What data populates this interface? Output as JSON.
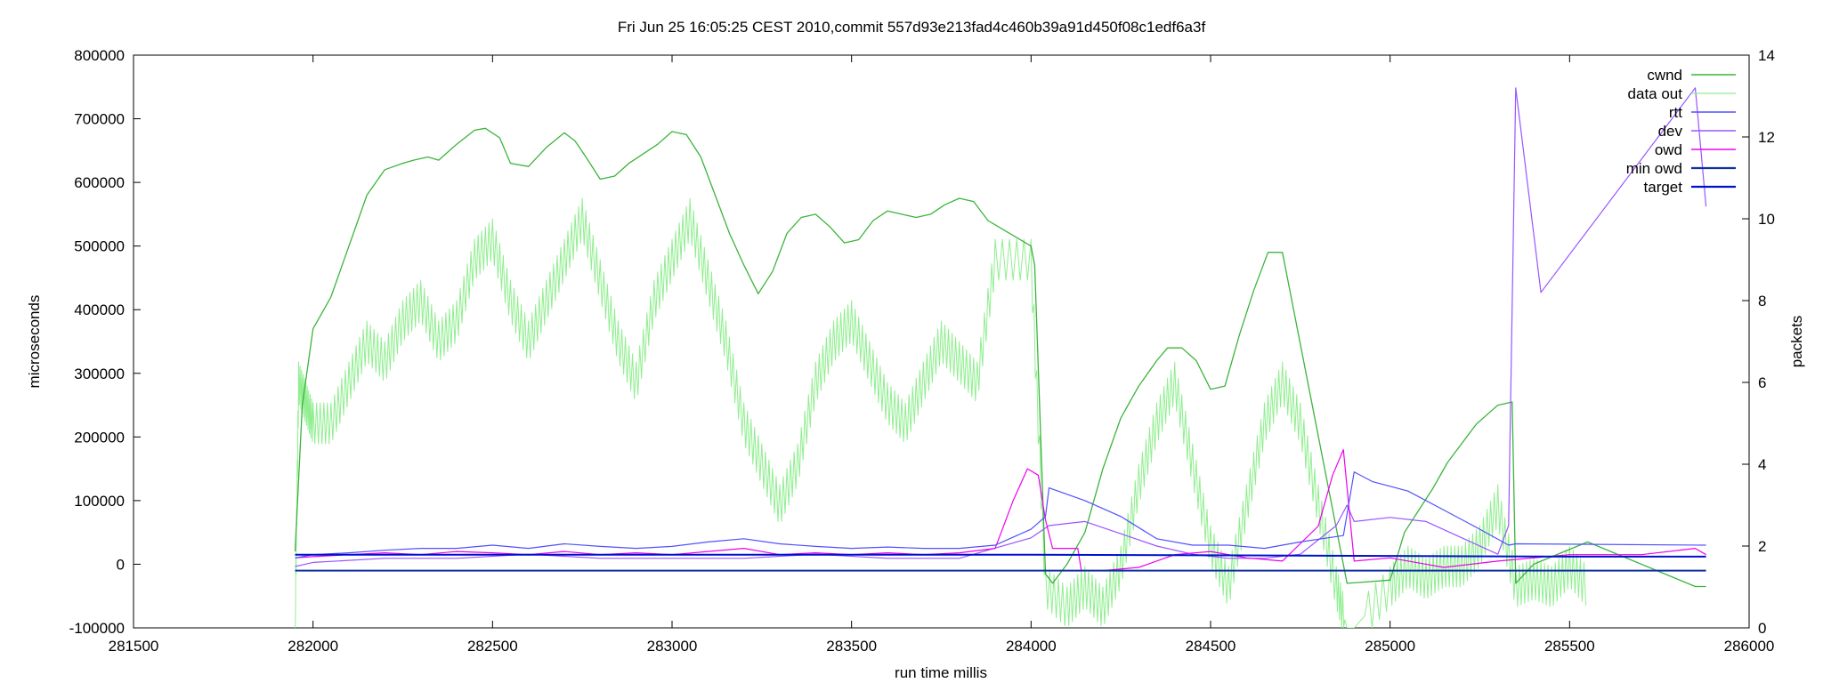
{
  "chart_data": {
    "type": "line",
    "title": "Fri Jun 25 16:05:25 CEST 2010,commit 557d93e213fad4c460b39a91d450f08c1edf6a3f",
    "xlabel": "run time millis",
    "ylabel": "microseconds",
    "y2label": "packets",
    "xlim": [
      281500,
      286000
    ],
    "ylim": [
      -100000,
      800000
    ],
    "y2lim": [
      0,
      14
    ],
    "x_ticks": [
      "281500",
      "282000",
      "282500",
      "283000",
      "283500",
      "284000",
      "284500",
      "285000",
      "285500",
      "286000"
    ],
    "y_ticks": [
      "-100000",
      "0",
      "100000",
      "200000",
      "300000",
      "400000",
      "500000",
      "600000",
      "700000",
      "800000"
    ],
    "y2_ticks": [
      "0",
      "2",
      "4",
      "6",
      "8",
      "10",
      "12",
      "14"
    ],
    "grid": false,
    "legend_position": "top-right",
    "series": [
      {
        "name": "cwnd",
        "axis": "y1",
        "color": "#3cb43c",
        "width": 1.3,
        "x": [
          281950,
          281970,
          282000,
          282050,
          282100,
          282150,
          282200,
          282250,
          282280,
          282320,
          282350,
          282400,
          282450,
          282480,
          282520,
          282550,
          282600,
          282650,
          282700,
          282730,
          282760,
          282800,
          282840,
          282880,
          282920,
          282960,
          283000,
          283040,
          283080,
          283120,
          283160,
          283200,
          283240,
          283280,
          283320,
          283360,
          283400,
          283440,
          283480,
          283520,
          283560,
          283600,
          283640,
          283680,
          283720,
          283760,
          283800,
          283840,
          283880,
          284000,
          284010,
          284040,
          284060,
          284100,
          284150,
          284200,
          284250,
          284300,
          284350,
          284380,
          284420,
          284460,
          284500,
          284540,
          284580,
          284620,
          284660,
          284700,
          284880,
          285000,
          285040,
          285080,
          285120,
          285160,
          285200,
          285240,
          285280,
          285300,
          285340,
          285350,
          285400,
          285550,
          285850,
          285880
        ],
        "y": [
          20000,
          250000,
          370000,
          420000,
          500000,
          580000,
          620000,
          630000,
          635000,
          640000,
          635000,
          660000,
          682000,
          685000,
          670000,
          630000,
          625000,
          655000,
          678000,
          665000,
          640000,
          605000,
          610000,
          630000,
          645000,
          660000,
          680000,
          675000,
          640000,
          580000,
          520000,
          470000,
          425000,
          460000,
          520000,
          545000,
          550000,
          530000,
          505000,
          510000,
          540000,
          555000,
          550000,
          545000,
          550000,
          565000,
          575000,
          570000,
          540000,
          500000,
          470000,
          -15000,
          -30000,
          0,
          50000,
          150000,
          230000,
          280000,
          320000,
          340000,
          340000,
          320000,
          275000,
          280000,
          360000,
          430000,
          490000,
          490000,
          -30000,
          -25000,
          50000,
          85000,
          120000,
          160000,
          190000,
          220000,
          240000,
          250000,
          255000,
          -30000,
          0,
          35000,
          -35000,
          -35000
        ]
      },
      {
        "name": "data out",
        "axis": "y2",
        "color": "#90ee90",
        "width": 1,
        "x": [
          281950,
          281960,
          281980,
          282000,
          282050,
          282100,
          282150,
          282200,
          282250,
          282300,
          282350,
          282400,
          282450,
          282500,
          282550,
          282600,
          282650,
          282700,
          282750,
          282800,
          282850,
          282900,
          282950,
          283000,
          283050,
          283100,
          283150,
          283200,
          283250,
          283300,
          283350,
          283400,
          283450,
          283500,
          283550,
          283600,
          283650,
          283700,
          283750,
          283800,
          283850,
          283900,
          284000,
          284040,
          284100,
          284150,
          284200,
          284250,
          284300,
          284350,
          284400,
          284450,
          284500,
          284550,
          284600,
          284650,
          284700,
          284750,
          284800,
          284850,
          284880,
          284900,
          285000,
          285050,
          285100,
          285150,
          285200,
          285250,
          285300,
          285350,
          285400,
          285450,
          285500,
          285550
        ],
        "y": [
          0,
          6,
          5.5,
          5,
          5,
          6,
          7,
          6.5,
          7.5,
          8,
          7,
          7.5,
          9,
          9.5,
          8,
          7,
          8,
          9,
          10,
          8.5,
          7,
          6,
          8,
          9,
          10,
          8.5,
          7,
          5,
          4,
          3,
          4,
          6,
          7,
          7.5,
          6.5,
          5.5,
          5,
          6,
          7,
          6.5,
          6,
          9,
          9,
          1,
          0.5,
          1,
          0.5,
          1.5,
          3.5,
          5,
          6,
          4,
          2,
          1,
          3,
          5,
          6,
          5,
          3,
          1,
          0,
          0,
          1,
          1.5,
          1.2,
          1.5,
          1.5,
          2,
          3,
          1,
          1.2,
          1,
          1.5,
          1
        ]
      },
      {
        "name": "rtt",
        "axis": "y1",
        "color": "#5050ff",
        "width": 1.2,
        "x": [
          281950,
          282000,
          282100,
          282200,
          282300,
          282400,
          282500,
          282600,
          282700,
          282800,
          282900,
          283000,
          283100,
          283200,
          283300,
          283400,
          283500,
          283600,
          283700,
          283800,
          283900,
          284000,
          284040,
          284050,
          284150,
          284250,
          284350,
          284450,
          284550,
          284650,
          284750,
          284870,
          284900,
          284950,
          285050,
          285150,
          285250,
          285330,
          285350,
          285880
        ],
        "y": [
          10000,
          15000,
          18000,
          22000,
          25000,
          25000,
          30000,
          25000,
          32000,
          28000,
          25000,
          28000,
          35000,
          40000,
          32000,
          28000,
          25000,
          27000,
          25000,
          25000,
          30000,
          55000,
          75000,
          120000,
          100000,
          75000,
          40000,
          30000,
          30000,
          25000,
          35000,
          45000,
          145000,
          130000,
          115000,
          85000,
          55000,
          30000,
          32000,
          30000
        ]
      },
      {
        "name": "dev",
        "axis": "y2",
        "color": "#9955ff",
        "width": 1.2,
        "x": [
          281950,
          282000,
          282200,
          282400,
          282600,
          282800,
          283000,
          283200,
          283400,
          283600,
          283800,
          284000,
          284050,
          284150,
          284250,
          284350,
          284450,
          284550,
          284650,
          284750,
          284850,
          284880,
          284900,
          285000,
          285100,
          285200,
          285300,
          285330,
          285350,
          285420,
          285850,
          285880
        ],
        "y": [
          1.5,
          1.6,
          1.7,
          1.7,
          1.8,
          1.7,
          1.7,
          1.7,
          1.8,
          1.7,
          1.7,
          2.2,
          2.5,
          2.6,
          2.3,
          2,
          1.8,
          1.7,
          1.7,
          1.8,
          2.5,
          3,
          2.6,
          2.7,
          2.6,
          2.2,
          1.8,
          2.5,
          13.2,
          8.2,
          13.2,
          10.3
        ]
      },
      {
        "name": "owd",
        "axis": "y1",
        "color": "#ee00ee",
        "width": 1.2,
        "x": [
          281950,
          282000,
          282100,
          282200,
          282300,
          282400,
          282500,
          282600,
          282700,
          282800,
          282900,
          283000,
          283100,
          283200,
          283300,
          283400,
          283500,
          283600,
          283700,
          283800,
          283900,
          283950,
          283990,
          284020,
          284040,
          284060,
          284130,
          284140,
          284200,
          284300,
          284400,
          284500,
          284600,
          284700,
          284800,
          284840,
          284870,
          284900,
          285000,
          285150,
          285300,
          285500,
          285700,
          285850,
          285880
        ],
        "y": [
          10000,
          12000,
          15000,
          18000,
          15000,
          20000,
          18000,
          15000,
          20000,
          15000,
          18000,
          15000,
          20000,
          25000,
          15000,
          18000,
          15000,
          18000,
          15000,
          18000,
          25000,
          100000,
          150000,
          140000,
          70000,
          25000,
          25000,
          -10000,
          -10000,
          -5000,
          15000,
          20000,
          10000,
          5000,
          60000,
          140000,
          180000,
          5000,
          10000,
          -5000,
          5000,
          15000,
          15000,
          25000,
          15000
        ]
      },
      {
        "name": "min owd",
        "axis": "y1",
        "color": "#1030a0",
        "width": 2,
        "x": [
          281950,
          284000,
          284500,
          285000,
          285500,
          285880
        ],
        "y": [
          -10000,
          -10000,
          -10000,
          -10000,
          -10000,
          -10000
        ]
      },
      {
        "name": "target",
        "axis": "y1",
        "color": "#0010cc",
        "width": 2,
        "x": [
          281950,
          284000,
          284500,
          285000,
          285500,
          285880
        ],
        "y": [
          15000,
          15000,
          14000,
          13000,
          12000,
          12000
        ]
      }
    ]
  }
}
